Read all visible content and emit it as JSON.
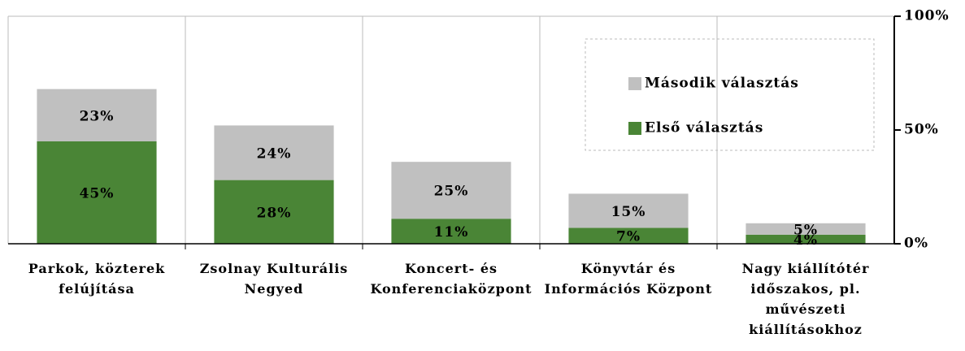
{
  "chart_data": {
    "type": "stacked_bar",
    "categories": [
      "Parkok, közterek felújítása",
      "Zsolnay Kulturális Negyed",
      "Koncert- és Konferenciaközpont",
      "Könyvtár és Információs Központ",
      "Nagy kiállítótér időszakos, pl. művészeti kiállításokhoz"
    ],
    "series": [
      {
        "name": "Első választás",
        "color": "#4a8536",
        "values": [
          45,
          28,
          11,
          7,
          4
        ],
        "value_labels": [
          "45%",
          "28%",
          "11%",
          "7%",
          "4%"
        ]
      },
      {
        "name": "Második választás",
        "color": "#c0c0c0",
        "values": [
          23,
          24,
          25,
          15,
          5
        ],
        "value_labels": [
          "23%",
          "24%",
          "25%",
          "15%",
          "5%"
        ]
      }
    ],
    "ylim": [
      0,
      100
    ],
    "yticks": [
      {
        "value": 0,
        "label": "0%"
      },
      {
        "value": 50,
        "label": "50%"
      },
      {
        "value": 100,
        "label": "100%"
      }
    ],
    "y_axis_side": "right",
    "legend": "top-right"
  }
}
